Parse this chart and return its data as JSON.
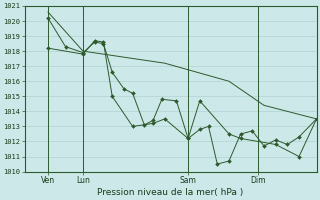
{
  "xlabel": "Pression niveau de la mer( hPa )",
  "bg_color": "#cce8e8",
  "grid_color": "#aacece",
  "line_color": "#2d5a2d",
  "marker_color": "#2d5a2d",
  "spine_color": "#2d5a2d",
  "ylim": [
    1010,
    1021
  ],
  "yticks": [
    1010,
    1011,
    1012,
    1013,
    1014,
    1015,
    1016,
    1017,
    1018,
    1019,
    1020,
    1021
  ],
  "xtick_labels": [
    "Ven",
    "Lun",
    "Sam",
    "Dim"
  ],
  "xtick_positions": [
    8,
    20,
    56,
    80
  ],
  "vline_positions": [
    8,
    20,
    56,
    80
  ],
  "xlim": [
    0,
    100
  ],
  "series": [
    {
      "x": [
        8,
        20,
        48,
        70,
        82,
        100
      ],
      "y": [
        1020.6,
        1018.0,
        1017.2,
        1016.0,
        1014.4,
        1013.5
      ]
    },
    {
      "x": [
        8,
        14,
        20,
        24,
        27,
        30,
        34,
        37,
        41,
        44,
        47,
        52,
        56,
        60,
        63,
        66,
        70,
        74,
        78,
        82,
        86,
        90,
        94,
        100
      ],
      "y": [
        1020.2,
        1018.3,
        1017.9,
        1018.6,
        1018.5,
        1016.6,
        1015.5,
        1015.2,
        1013.1,
        1013.4,
        1014.8,
        1014.7,
        1012.2,
        1012.8,
        1013.0,
        1010.5,
        1010.7,
        1012.5,
        1012.7,
        1011.7,
        1012.1,
        1011.8,
        1012.3,
        1013.5
      ]
    },
    {
      "x": [
        8,
        20,
        24,
        27,
        30,
        37,
        44,
        48,
        56,
        60,
        70,
        74,
        86,
        94,
        100
      ],
      "y": [
        1018.2,
        1017.8,
        1018.7,
        1018.6,
        1015.0,
        1013.0,
        1013.2,
        1013.5,
        1012.2,
        1014.7,
        1012.5,
        1012.2,
        1011.8,
        1011.0,
        1013.5
      ]
    }
  ]
}
